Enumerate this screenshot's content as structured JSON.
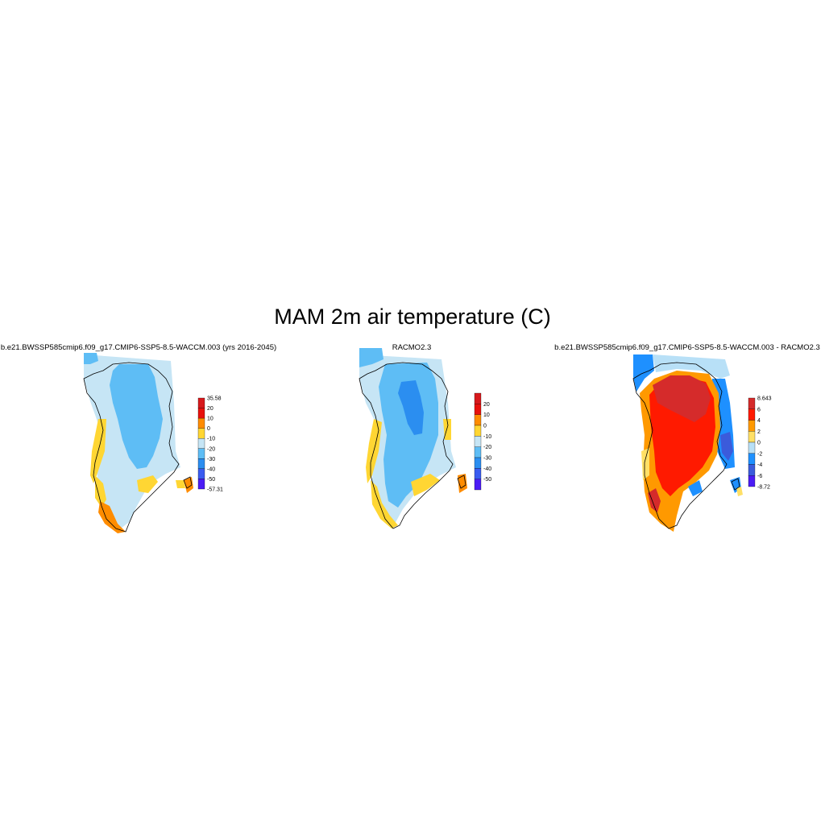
{
  "title": "MAM 2m air temperature (C)",
  "panels": [
    {
      "title": "b.e21.BWSSP585cmip6.f09_g17.CMIP6-SSP5-8.5-WACCM.003 (yrs 2016-2045)",
      "colorbar": {
        "labels": [
          "35.58",
          "20",
          "10",
          "0",
          "-10",
          "-20",
          "-30",
          "-40",
          "-50",
          "-57.31"
        ],
        "colors": [
          "#d7191c",
          "#e8110c",
          "#ff8c00",
          "#ffd633",
          "#c6e5f5",
          "#5ebdf5",
          "#2b8ef0",
          "#3a5cf0",
          "#4b1cf5"
        ]
      }
    },
    {
      "title": "RACMO2.3",
      "colorbar": {
        "labels": [
          "20",
          "10",
          "0",
          "-10",
          "-20",
          "-30",
          "-40",
          "-50"
        ],
        "colors": [
          "#d7191c",
          "#e8110c",
          "#ff8c00",
          "#ffd633",
          "#c6e5f5",
          "#5ebdf5",
          "#2b8ef0",
          "#3a5cf0",
          "#4b1cf5"
        ]
      }
    },
    {
      "title": "b.e21.BWSSP585cmip6.f09_g17.CMIP6-SSP5-8.5-WACCM.003 - RACMO2.3",
      "colorbar": {
        "labels": [
          "8.643",
          "6",
          "4",
          "2",
          "0",
          "-2",
          "-4",
          "-6",
          "-8.72"
        ],
        "colors": [
          "#d52b2b",
          "#ff1a00",
          "#ff9900",
          "#ffe066",
          "#b8e0f7",
          "#1e90ff",
          "#3b5bdb",
          "#4b1cf5"
        ]
      }
    }
  ]
}
